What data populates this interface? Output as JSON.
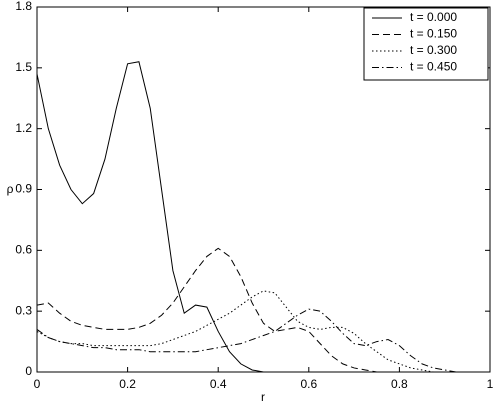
{
  "chart_data": {
    "type": "line",
    "xlabel": "r",
    "ylabel": "ρ",
    "x": [
      0,
      0.025,
      0.05,
      0.075,
      0.1,
      0.125,
      0.15,
      0.175,
      0.2,
      0.225,
      0.25,
      0.275,
      0.3,
      0.325,
      0.35,
      0.375,
      0.4,
      0.425,
      0.45,
      0.475,
      0.5,
      0.525,
      0.55,
      0.575,
      0.6,
      0.625,
      0.65,
      0.675,
      0.7,
      0.725,
      0.75,
      0.775,
      0.8,
      0.825,
      0.85,
      0.875,
      0.9,
      0.925,
      0.95,
      0.975,
      1
    ],
    "series": [
      {
        "name": "t = 0.000",
        "color": "#000000",
        "dash": "solid",
        "values": [
          1.47,
          1.2,
          1.02,
          0.9,
          0.83,
          0.88,
          1.05,
          1.3,
          1.52,
          1.53,
          1.3,
          0.9,
          0.5,
          0.29,
          0.33,
          0.32,
          0.2,
          0.1,
          0.04,
          0.01,
          0,
          0,
          0,
          0,
          0,
          0,
          0,
          0,
          0,
          0,
          0,
          0,
          0,
          0,
          0,
          0,
          0,
          0,
          0,
          0,
          0
        ]
      },
      {
        "name": "t = 0.150",
        "color": "#000000",
        "dash": "dashed",
        "values": [
          0.33,
          0.34,
          0.29,
          0.25,
          0.23,
          0.22,
          0.21,
          0.21,
          0.21,
          0.22,
          0.24,
          0.28,
          0.34,
          0.42,
          0.5,
          0.57,
          0.61,
          0.57,
          0.47,
          0.34,
          0.24,
          0.2,
          0.21,
          0.22,
          0.2,
          0.14,
          0.08,
          0.04,
          0.02,
          0.01,
          0,
          0,
          0,
          0,
          0,
          0,
          0,
          0,
          0,
          0,
          0
        ]
      },
      {
        "name": "t = 0.300",
        "color": "#000000",
        "dash": "dotted",
        "values": [
          0.2,
          0.17,
          0.15,
          0.14,
          0.14,
          0.13,
          0.13,
          0.13,
          0.13,
          0.13,
          0.13,
          0.14,
          0.16,
          0.18,
          0.2,
          0.23,
          0.26,
          0.29,
          0.33,
          0.37,
          0.4,
          0.39,
          0.32,
          0.25,
          0.22,
          0.21,
          0.22,
          0.22,
          0.19,
          0.14,
          0.1,
          0.06,
          0.04,
          0.02,
          0.01,
          0,
          0,
          0,
          0,
          0,
          0
        ]
      },
      {
        "name": "t = 0.450",
        "color": "#000000",
        "dash": "dashdot",
        "values": [
          0.21,
          0.17,
          0.15,
          0.14,
          0.13,
          0.12,
          0.12,
          0.11,
          0.11,
          0.11,
          0.1,
          0.1,
          0.1,
          0.1,
          0.1,
          0.11,
          0.12,
          0.13,
          0.14,
          0.16,
          0.18,
          0.2,
          0.24,
          0.28,
          0.31,
          0.3,
          0.25,
          0.19,
          0.14,
          0.13,
          0.15,
          0.16,
          0.13,
          0.08,
          0.04,
          0.02,
          0.01,
          0,
          0,
          0,
          0
        ]
      }
    ],
    "xlim": [
      0,
      1
    ],
    "xticks": [
      0,
      0.2,
      0.4,
      0.6,
      0.8,
      1
    ],
    "ylim": [
      0,
      1.8
    ],
    "yticks": [
      0,
      0.3,
      0.6,
      0.9,
      1.2,
      1.5,
      1.8
    ],
    "grid": false,
    "legend": "upper right"
  }
}
